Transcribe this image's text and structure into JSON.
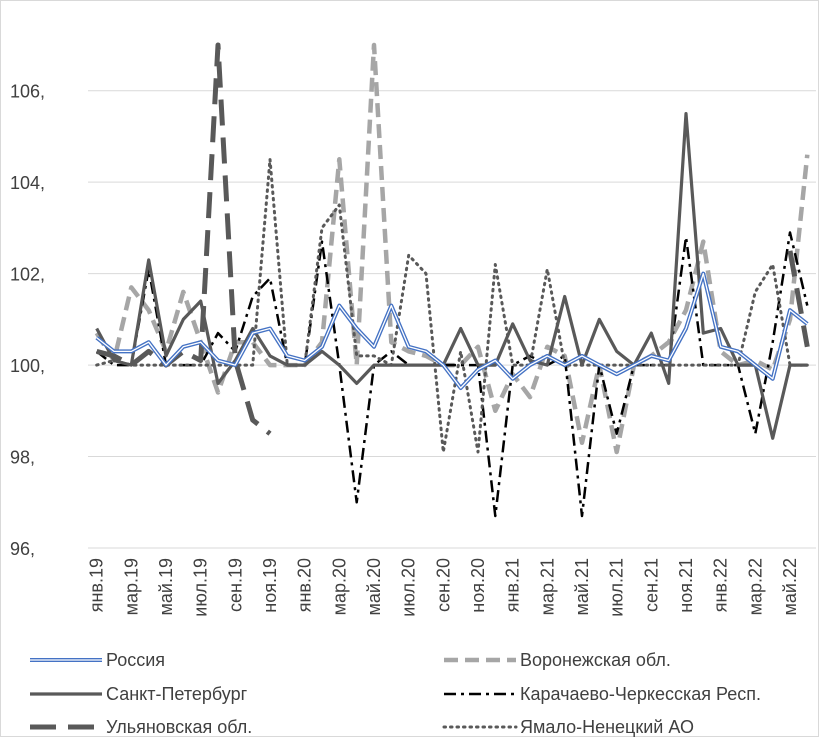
{
  "chart_data": {
    "type": "line",
    "title": "",
    "xlabel": "",
    "ylabel": "",
    "ylim": [
      96,
      107
    ],
    "yticks": [
      96,
      98,
      100,
      102,
      104,
      106
    ],
    "ytick_labels": [
      "96,",
      "98,",
      "100,",
      "102,",
      "104,",
      "106,"
    ],
    "x": [
      "янв.19",
      "фев.19",
      "мар.19",
      "апр.19",
      "май.19",
      "июн.19",
      "июл.19",
      "авг.19",
      "сен.19",
      "окт.19",
      "ноя.19",
      "дек.19",
      "янв.20",
      "фев.20",
      "мар.20",
      "апр.20",
      "май.20",
      "июн.20",
      "июл.20",
      "авг.20",
      "сен.20",
      "окт.20",
      "ноя.20",
      "дек.20",
      "янв.21",
      "фев.21",
      "мар.21",
      "апр.21",
      "май.21",
      "июн.21",
      "июл.21",
      "авг.21",
      "сен.21",
      "окт.21",
      "ноя.21",
      "дек.21",
      "янв.22",
      "фев.22",
      "мар.22",
      "апр.22",
      "май.22",
      "июн.22"
    ],
    "xtick_labels": [
      "янв.19",
      "мар.19",
      "май.19",
      "июл.19",
      "сен.19",
      "ноя.19",
      "янв.20",
      "мар.20",
      "май.20",
      "июл.20",
      "сен.20",
      "ноя.20",
      "янв.21",
      "мар.21",
      "май.21",
      "июл.21",
      "сен.21",
      "ноя.21",
      "янв.22",
      "мар.22",
      "май.22"
    ],
    "grid": "horizontal",
    "legend_position": "bottom",
    "series": [
      {
        "name": "Россия",
        "color": "#4472c4",
        "style": "double",
        "values": [
          100.6,
          100.3,
          100.3,
          100.5,
          100.0,
          100.4,
          100.5,
          100.1,
          100.0,
          100.7,
          100.8,
          100.2,
          100.1,
          100.4,
          101.3,
          100.8,
          100.4,
          101.3,
          100.4,
          100.3,
          100.0,
          99.5,
          99.9,
          100.1,
          99.7,
          100.0,
          100.2,
          100.0,
          100.2,
          100.0,
          99.8,
          100.0,
          100.2,
          100.1,
          100.8,
          102.0,
          100.4,
          100.3,
          100.0,
          99.7,
          101.2,
          100.9
        ]
      },
      {
        "name": "Воронежская обл.",
        "color": "#a6a6a6",
        "style": "dashed",
        "values": [
          100.7,
          100.1,
          101.7,
          101.2,
          100.3,
          101.6,
          100.5,
          99.4,
          100.5,
          100.5,
          100.0,
          100.0,
          100.0,
          100.5,
          104.5,
          100.0,
          107.0,
          100.5,
          100.3,
          100.2,
          100.0,
          100.0,
          100.4,
          99.0,
          99.8,
          99.3,
          100.4,
          100.2,
          98.3,
          100.0,
          98.1,
          100.0,
          100.2,
          100.5,
          101.2,
          102.7,
          100.3,
          100.0,
          100.1,
          99.9,
          101.0,
          104.6
        ]
      },
      {
        "name": "Санкт-Петербург",
        "color": "#595959",
        "style": "solid",
        "values": [
          100.8,
          100.1,
          100.0,
          102.3,
          100.2,
          101.0,
          101.4,
          99.6,
          100.1,
          100.8,
          100.2,
          100.0,
          100.0,
          100.3,
          100.0,
          99.6,
          100.0,
          100.0,
          100.0,
          100.0,
          100.0,
          100.8,
          100.0,
          100.0,
          100.9,
          100.1,
          100.0,
          101.5,
          100.0,
          101.0,
          100.3,
          100.0,
          100.7,
          99.6,
          105.5,
          100.7,
          100.8,
          100.0,
          100.0,
          98.4,
          100.0,
          100.0
        ]
      },
      {
        "name": "Карачаево-Черкесская Респ.",
        "color": "#000000",
        "style": "dashdot",
        "values": [
          100.3,
          100.0,
          100.0,
          102.1,
          100.0,
          100.0,
          100.0,
          100.7,
          100.3,
          101.5,
          101.9,
          100.0,
          100.0,
          102.7,
          100.0,
          97.0,
          100.0,
          100.3,
          100.0,
          100.0,
          100.0,
          100.0,
          100.0,
          96.7,
          100.0,
          100.2,
          100.0,
          100.2,
          96.7,
          100.0,
          98.5,
          100.0,
          100.0,
          100.0,
          102.8,
          100.0,
          100.0,
          100.0,
          98.5,
          100.5,
          102.9,
          101.3
        ]
      },
      {
        "name": "Ульяновская обл.",
        "color": "#595959",
        "style": "longdash",
        "values": [
          100.3,
          100.2,
          100.0,
          100.3,
          100.0,
          100.3,
          100.1,
          107.0,
          100.1,
          98.8,
          98.5,
          null,
          null,
          null,
          null,
          null,
          null,
          null,
          null,
          null,
          null,
          null,
          null,
          null,
          null,
          null,
          null,
          null,
          null,
          null,
          null,
          null,
          null,
          null,
          null,
          null,
          null,
          null,
          null,
          null,
          102.5,
          100.4
        ]
      },
      {
        "name": "Ямало-Ненецкий АО",
        "color": "#595959",
        "style": "dotted",
        "values": [
          100.0,
          100.1,
          100.0,
          100.0,
          100.0,
          100.0,
          100.0,
          100.0,
          100.0,
          100.0,
          104.5,
          100.0,
          100.0,
          103.0,
          103.5,
          100.2,
          100.2,
          100.0,
          102.4,
          102.0,
          98.1,
          100.3,
          98.1,
          102.2,
          100.0,
          100.0,
          102.1,
          100.0,
          100.0,
          100.0,
          100.0,
          100.0,
          100.0,
          100.0,
          100.0,
          100.0,
          100.0,
          100.0,
          101.6,
          102.2,
          100.0,
          100.0
        ]
      }
    ]
  }
}
